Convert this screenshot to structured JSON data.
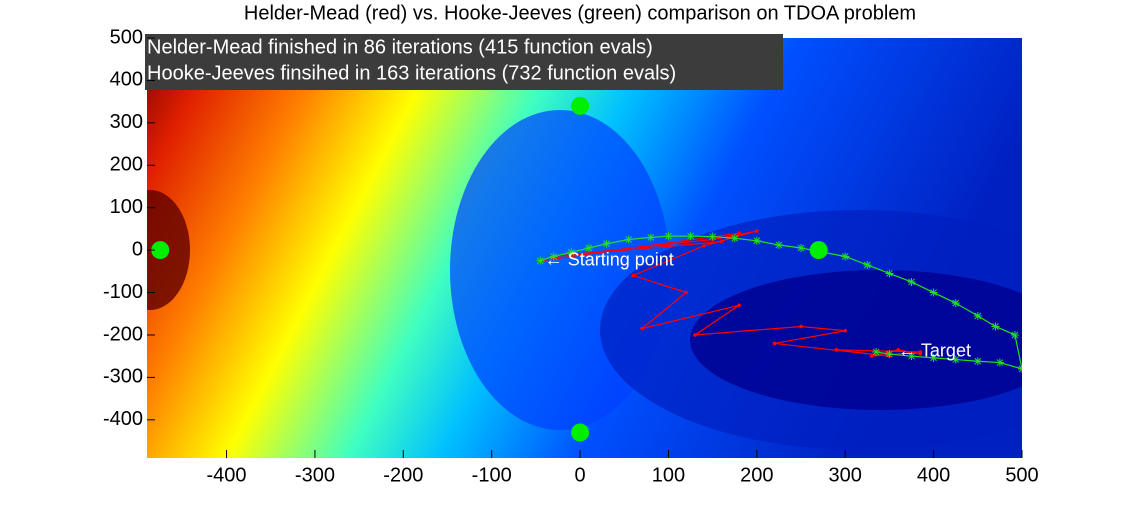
{
  "chart_data": {
    "type": "line",
    "title": "Helder-Mead (red) vs. Hooke-Jeeves (green) comparison on TDOA problem",
    "info_box": [
      "Nelder-Mead finished in 86 iterations (415 function evals)",
      "Hooke-Jeeves finsihed in 163 iterations (732 function evals)"
    ],
    "annotations": [
      {
        "text": "← Starting point",
        "x": -40,
        "y": -25
      },
      {
        "text": "← Target",
        "x": 360,
        "y": -240
      }
    ],
    "xlim": [
      -490,
      500
    ],
    "ylim": [
      -490,
      500
    ],
    "xticks": [
      -400,
      -300,
      -200,
      -100,
      0,
      100,
      200,
      300,
      400,
      500
    ],
    "yticks": [
      -400,
      -300,
      -200,
      -100,
      0,
      100,
      200,
      300,
      400,
      500
    ],
    "sensors": {
      "color": "#00ee00",
      "x": [
        -475,
        0,
        0,
        270
      ],
      "values": [
        0,
        340,
        -430,
        0
      ]
    },
    "series": [
      {
        "name": "Nelder-Mead",
        "color": "#ff0000",
        "x": [
          -45,
          180,
          160,
          -30,
          150,
          200,
          140,
          60,
          120,
          70,
          180,
          130,
          250,
          300,
          220,
          350,
          290,
          385,
          330,
          360,
          385
        ],
        "values": [
          -25,
          40,
          20,
          -15,
          25,
          45,
          10,
          -60,
          -100,
          -185,
          -130,
          -200,
          -180,
          -190,
          -220,
          -250,
          -235,
          -240,
          -250,
          -235,
          -245
        ]
      },
      {
        "name": "Hooke-Jeeves",
        "color": "#22dd22",
        "x": [
          -45,
          -30,
          -10,
          10,
          30,
          55,
          80,
          100,
          125,
          150,
          175,
          200,
          225,
          250,
          275,
          300,
          325,
          350,
          375,
          400,
          425,
          450,
          470,
          492,
          500,
          475,
          450,
          425,
          400,
          375,
          350,
          335
        ],
        "values": [
          -25,
          -15,
          -5,
          5,
          15,
          25,
          30,
          33,
          33,
          32,
          28,
          22,
          12,
          5,
          -5,
          -15,
          -35,
          -55,
          -75,
          -100,
          -125,
          -155,
          -180,
          -200,
          -280,
          -265,
          -262,
          -258,
          -254,
          -250,
          -245,
          -240
        ]
      }
    ]
  }
}
